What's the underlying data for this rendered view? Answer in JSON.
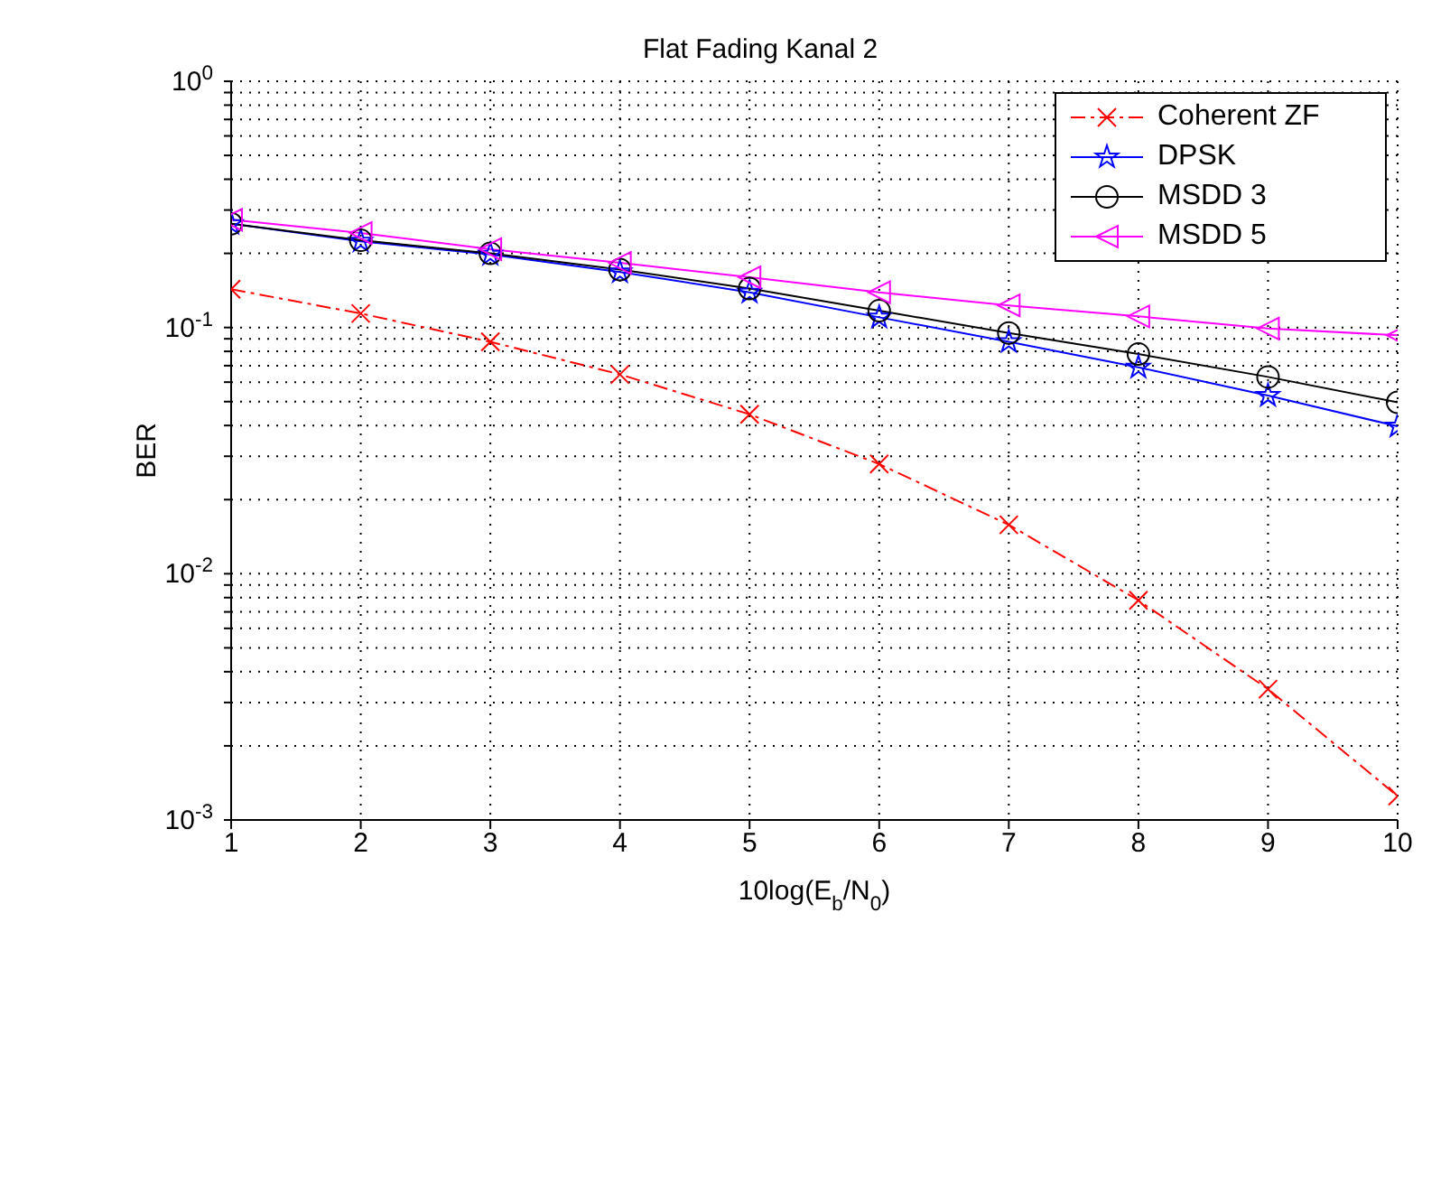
{
  "chart_data": {
    "type": "line",
    "title": "Flat Fading Kanal 2",
    "xlabel": "10log(E$_{b}$/N$_{0}$)",
    "ylabel": "BER",
    "log": "y",
    "grid": true,
    "legend": "top right",
    "x": [
      1,
      2,
      3,
      4,
      5,
      6,
      7,
      8,
      9,
      10
    ],
    "xlim": [
      1,
      10
    ],
    "xticks": [
      1,
      2,
      3,
      4,
      5,
      6,
      7,
      8,
      9,
      10
    ],
    "ylim": [
      0.001,
      1
    ],
    "yticks": [
      {
        "value": 0.001,
        "label": "10$^{-3}$"
      },
      {
        "value": 0.002,
        "label": null
      },
      {
        "value": 0.003,
        "label": null
      },
      {
        "value": 0.004,
        "label": null
      },
      {
        "value": 0.005,
        "label": null
      },
      {
        "value": 0.006,
        "label": null
      },
      {
        "value": 0.007,
        "label": null
      },
      {
        "value": 0.008,
        "label": null
      },
      {
        "value": 0.009,
        "label": null
      },
      {
        "value": 0.01,
        "label": "10$^{-2}$"
      },
      {
        "value": 0.02,
        "label": null
      },
      {
        "value": 0.03,
        "label": null
      },
      {
        "value": 0.04,
        "label": null
      },
      {
        "value": 0.05,
        "label": null
      },
      {
        "value": 0.06,
        "label": null
      },
      {
        "value": 0.07,
        "label": null
      },
      {
        "value": 0.08,
        "label": null
      },
      {
        "value": 0.09,
        "label": null
      },
      {
        "value": 0.1,
        "label": "10$^{-1}$"
      },
      {
        "value": 0.2,
        "label": null
      },
      {
        "value": 0.3,
        "label": null
      },
      {
        "value": 0.4,
        "label": null
      },
      {
        "value": 0.5,
        "label": null
      },
      {
        "value": 0.6,
        "label": null
      },
      {
        "value": 0.7,
        "label": null
      },
      {
        "value": 0.8,
        "label": null
      },
      {
        "value": 0.9,
        "label": null
      },
      {
        "value": 1,
        "label": "10$^{0}$"
      }
    ],
    "series": [
      {
        "name": "Coherent ZF",
        "color": "#ff0000",
        "marker": "cross",
        "line_style": "dashdot",
        "values": [
          0.143,
          0.114,
          0.0875,
          0.0645,
          0.0444,
          0.0279,
          0.0158,
          0.0078,
          0.0034,
          0.00125
        ]
      },
      {
        "name": "DPSK",
        "color": "#0000ff",
        "marker": "star",
        "line_style": "solid",
        "values": [
          0.264,
          0.224,
          0.198,
          0.168,
          0.139,
          0.11,
          0.0875,
          0.0689,
          0.0529,
          0.0397
        ]
      },
      {
        "name": "MSDD 3",
        "color": "#000000",
        "marker": "circle",
        "line_style": "solid",
        "values": [
          0.264,
          0.226,
          0.2,
          0.172,
          0.144,
          0.117,
          0.095,
          0.078,
          0.063,
          0.0497
        ]
      },
      {
        "name": "MSDD 5",
        "color": "#ff00ff",
        "marker": "triangle",
        "line_style": "solid",
        "values": [
          0.274,
          0.242,
          0.208,
          0.183,
          0.16,
          0.139,
          0.123,
          0.111,
          0.099,
          0.093
        ]
      }
    ]
  }
}
